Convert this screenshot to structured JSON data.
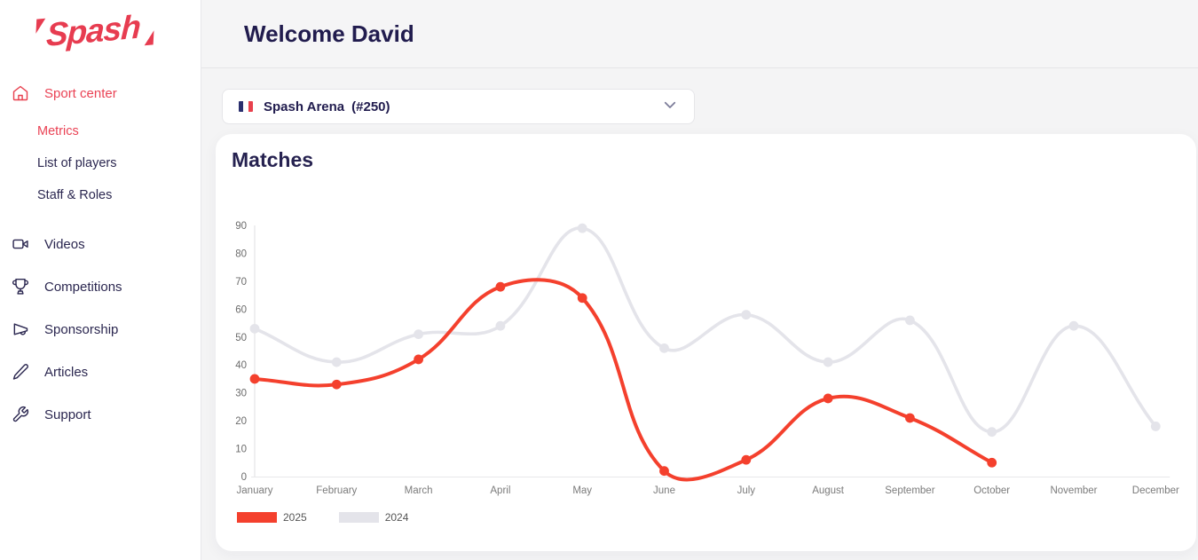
{
  "sidebar": {
    "logo_text": "Spash",
    "sport_center": {
      "label": "Sport center"
    },
    "sub_items": [
      {
        "label": "Metrics",
        "active": true
      },
      {
        "label": "List of players",
        "active": false
      },
      {
        "label": "Staff & Roles",
        "active": false
      }
    ],
    "items": [
      {
        "label": "Videos",
        "icon": "video-camera-icon"
      },
      {
        "label": "Competitions",
        "icon": "trophy-icon"
      },
      {
        "label": "Sponsorship",
        "icon": "megaphone-icon"
      },
      {
        "label": "Articles",
        "icon": "pencil-icon"
      },
      {
        "label": "Support",
        "icon": "wrench-icon"
      }
    ]
  },
  "header": {
    "title": "Welcome David"
  },
  "venue_select": {
    "flag": "french-flag-icon",
    "name": "Spash Arena",
    "number": "(#250)"
  },
  "chart_card": {
    "title": "Matches"
  },
  "chart_data": {
    "type": "line",
    "title": "Matches",
    "x": [
      "January",
      "February",
      "March",
      "April",
      "May",
      "June",
      "July",
      "August",
      "September",
      "October",
      "November",
      "December"
    ],
    "series": [
      {
        "name": "2025",
        "color": "#f4402d",
        "values": [
          35,
          33,
          42,
          68,
          64,
          2,
          6,
          28,
          21,
          5
        ]
      },
      {
        "name": "2024",
        "color": "#e4e4ea",
        "values": [
          53,
          41,
          51,
          54,
          89,
          46,
          58,
          41,
          56,
          16,
          54,
          18
        ]
      }
    ],
    "ylim": [
      0,
      90
    ],
    "ytick_step": 10,
    "grid": false,
    "curve": "spline",
    "legend_position": "bottom-left",
    "axis_color": "#e8e8ea",
    "tick_label_color": "#6b6b6b",
    "x_label_color": "#7b7b7b"
  }
}
